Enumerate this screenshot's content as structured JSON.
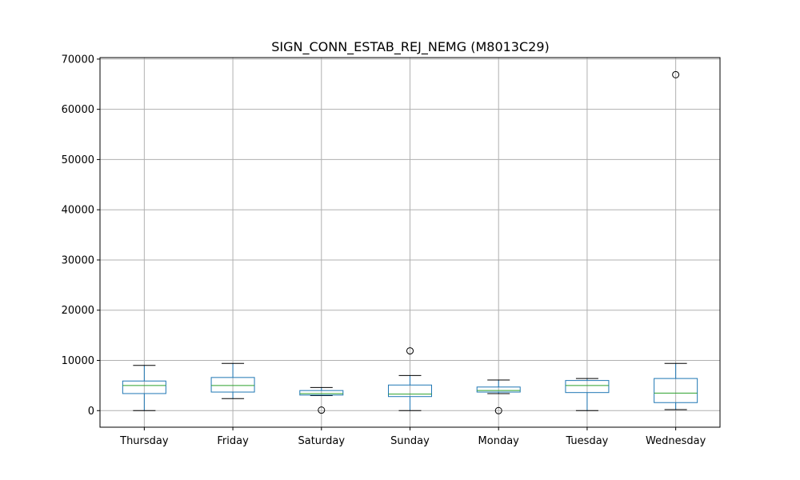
{
  "chart_data": {
    "type": "box",
    "title": "SIGN_CONN_ESTAB_REJ_NEMG (M8013C29)",
    "xlabel": "",
    "ylabel": "",
    "ylim": [
      -3300,
      70300
    ],
    "yticks": [
      0,
      10000,
      20000,
      30000,
      40000,
      50000,
      60000,
      70000
    ],
    "grid": true,
    "colors": {
      "box": "#1f77b4",
      "median": "#2ca02c",
      "whisker": "#000000",
      "grid": "#b0b0b0",
      "flier": "#000000"
    },
    "categories": [
      "Thursday",
      "Friday",
      "Saturday",
      "Sunday",
      "Monday",
      "Tuesday",
      "Wednesday"
    ],
    "boxes": [
      {
        "name": "Thursday",
        "whislo": 0,
        "q1": 3400,
        "med": 5000,
        "q3": 5900,
        "whishi": 9000,
        "fliers": []
      },
      {
        "name": "Friday",
        "whislo": 2400,
        "q1": 3700,
        "med": 5000,
        "q3": 6600,
        "whishi": 9400,
        "fliers": []
      },
      {
        "name": "Saturday",
        "whislo": 3000,
        "q1": 3100,
        "med": 3400,
        "q3": 4000,
        "whishi": 4600,
        "fliers": [
          100
        ]
      },
      {
        "name": "Sunday",
        "whislo": 0,
        "q1": 2800,
        "med": 3300,
        "q3": 5100,
        "whishi": 7000,
        "fliers": [
          11900
        ]
      },
      {
        "name": "Monday",
        "whislo": 3400,
        "q1": 3700,
        "med": 4000,
        "q3": 4700,
        "whishi": 6100,
        "fliers": [
          0
        ]
      },
      {
        "name": "Tuesday",
        "whislo": 0,
        "q1": 3600,
        "med": 5000,
        "q3": 6000,
        "whishi": 6400,
        "fliers": []
      },
      {
        "name": "Wednesday",
        "whislo": 200,
        "q1": 1600,
        "med": 3500,
        "q3": 6400,
        "whishi": 9400,
        "fliers": [
          66900
        ]
      }
    ]
  }
}
